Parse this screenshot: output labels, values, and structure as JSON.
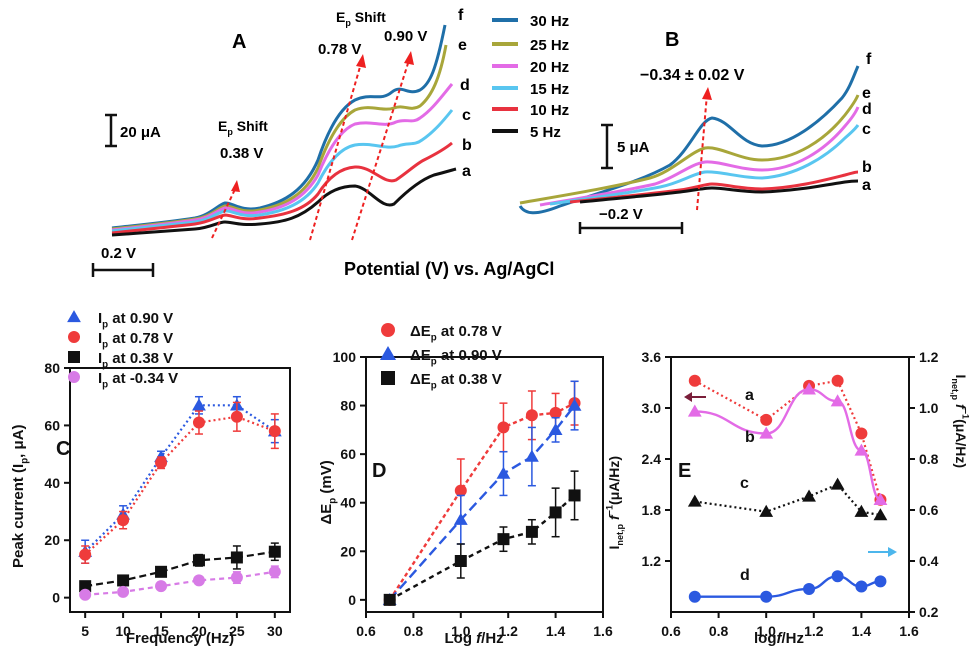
{
  "panels": {
    "A": {
      "label": "A",
      "scale_current": "20 μA",
      "scale_potential": "0.2 V",
      "shift_low": {
        "ep": "E",
        "sub": "p",
        "word": " Shift",
        "value": "0.38 V"
      },
      "shift_high": {
        "ep": "E",
        "sub": "p",
        "word": " Shift",
        "value_left": "0.78 V",
        "value_right": "0.90 V"
      },
      "curve_letters": [
        "f",
        "e",
        "d",
        "c",
        "b",
        "a"
      ]
    },
    "B": {
      "label": "B",
      "peak_label": "−0.34 ± 0.02 V",
      "scale_current": "5 μA",
      "scale_potential": "−0.2 V",
      "curve_letters": [
        "f",
        "e",
        "d",
        "c",
        "b",
        "a"
      ]
    },
    "legend_top": [
      {
        "label": "30 Hz",
        "color": "#1f6fa8"
      },
      {
        "label": "25 Hz",
        "color": "#a8a63a"
      },
      {
        "label": "20 Hz",
        "color": "#e36be6"
      },
      {
        "label": "15 Hz",
        "color": "#59c6f0"
      },
      {
        "label": "10 Hz",
        "color": "#e8323f"
      },
      {
        "label": "5 Hz",
        "color": "#111111"
      }
    ],
    "shared_xlabel": "Potential (V) vs. Ag/AgCl"
  },
  "chart_data": [
    {
      "panel": "C",
      "type": "line",
      "label": "C",
      "xlabel": "Frequency (Hz)",
      "ylabel_main": "Peak current (I",
      "ylabel_sub": "p",
      "ylabel_tail": ", μA)",
      "xlim": [
        3,
        32
      ],
      "ylim": [
        -5,
        80
      ],
      "xticks": [
        5,
        10,
        15,
        20,
        25,
        30
      ],
      "yticks": [
        0,
        20,
        40,
        60,
        80
      ],
      "x": [
        5,
        10,
        15,
        20,
        25,
        30
      ],
      "series": [
        {
          "name": "I",
          "sub": "p",
          "tail": " at 0.90 V",
          "color": "#2b59e0",
          "marker": "triangle",
          "values": [
            16,
            29,
            49,
            67,
            67,
            58
          ],
          "err": [
            4,
            3,
            2,
            3,
            3,
            4
          ]
        },
        {
          "name": "I",
          "sub": "p",
          "tail": " at 0.78 V",
          "color": "#ef3b3b",
          "marker": "circle",
          "values": [
            15,
            27,
            47,
            61,
            63,
            58
          ],
          "err": [
            3,
            3,
            2,
            4,
            5,
            6
          ]
        },
        {
          "name": "I",
          "sub": "p",
          "tail": " at 0.38 V",
          "color": "#111111",
          "marker": "square",
          "values": [
            4,
            6,
            9,
            13,
            14,
            16
          ],
          "err": [
            1,
            1,
            1,
            2,
            4,
            3
          ]
        },
        {
          "name": "I",
          "sub": "p",
          "tail": " at -0.34 V",
          "color": "#d77be6",
          "marker": "circle",
          "values": [
            1,
            2,
            4,
            6,
            7,
            9
          ],
          "err": [
            1,
            1,
            1,
            1,
            2,
            2
          ]
        }
      ]
    },
    {
      "panel": "D",
      "type": "line",
      "label": "D",
      "xlabel_pre": "Log ",
      "xlabel_f": "f",
      "xlabel_post": "/Hz",
      "ylabel_main": "ΔE",
      "ylabel_sub": "p",
      "ylabel_tail": " (mV)",
      "xlim": [
        0.6,
        1.6
      ],
      "ylim": [
        -5,
        100
      ],
      "xticks": [
        0.6,
        0.8,
        1.0,
        1.2,
        1.4,
        1.6
      ],
      "xtick_labels": [
        "0.6",
        "0.8",
        "1.0",
        "1.2",
        "1.4",
        "1.6"
      ],
      "yticks": [
        0,
        20,
        40,
        60,
        80,
        100
      ],
      "x": [
        0.7,
        1.0,
        1.18,
        1.3,
        1.4,
        1.48
      ],
      "series": [
        {
          "name": "ΔE",
          "sub": "p",
          "tail": " at 0.78 V",
          "color": "#ef3b3b",
          "marker": "circle",
          "values": [
            0,
            45,
            71,
            76,
            77,
            81
          ],
          "err": [
            0,
            13,
            10,
            10,
            8,
            9
          ]
        },
        {
          "name": "ΔE",
          "sub": "p",
          "tail": " at 0.90 V",
          "color": "#2b59e0",
          "marker": "triangle",
          "values": [
            0,
            33,
            52,
            59,
            70,
            80
          ],
          "err": [
            0,
            10,
            9,
            12,
            5,
            10
          ]
        },
        {
          "name": "ΔE",
          "sub": "p",
          "tail": " at 0.38 V",
          "color": "#111111",
          "marker": "square",
          "values": [
            0,
            16,
            25,
            28,
            36,
            43
          ],
          "err": [
            0,
            7,
            5,
            5,
            10,
            10
          ]
        }
      ]
    },
    {
      "panel": "E",
      "type": "line",
      "label": "E",
      "xlabel_pre": "log",
      "xlabel_f": "f",
      "xlabel_post": "/Hz",
      "ylabel_left": "I",
      "ylabel_left_sub": "net,p",
      "ylabel_left_tail": " f",
      "ylabel_left_sup": "−1",
      "ylabel_left_unit": "(μA/Hz)",
      "xlim": [
        0.6,
        1.6
      ],
      "ylim_left": [
        0.6,
        3.6
      ],
      "ylim_right": [
        0.2,
        1.2
      ],
      "xticks": [
        0.6,
        0.8,
        1.0,
        1.2,
        1.4,
        1.6
      ],
      "xtick_labels": [
        "0.6",
        "0.8",
        "1.0",
        "1.2",
        "1.4",
        "1.6"
      ],
      "yticks_left": [
        1.2,
        1.8,
        2.4,
        3.0,
        3.6
      ],
      "ytick_left_labels": [
        "1.2",
        "1.8",
        "2.4",
        "3.0",
        "3.6"
      ],
      "yticks_right": [
        0.2,
        0.4,
        0.6,
        0.8,
        1.0,
        1.2
      ],
      "ytick_right_labels": [
        "0.2",
        "0.4",
        "0.6",
        "0.8",
        "1.0",
        "1.2"
      ],
      "x": [
        0.7,
        1.0,
        1.18,
        1.3,
        1.4,
        1.48
      ],
      "series": [
        {
          "name": "a",
          "axis": "left",
          "color": "#ef3b3b",
          "marker": "circle",
          "style": "dotted",
          "values": [
            3.32,
            2.86,
            3.26,
            3.32,
            2.7,
            1.92
          ]
        },
        {
          "name": "b",
          "axis": "left",
          "color": "#e36be6",
          "marker": "triangle",
          "style": "solid",
          "values": [
            2.96,
            2.7,
            3.22,
            3.08,
            2.5,
            1.92
          ]
        },
        {
          "name": "c",
          "axis": "left",
          "color": "#111111",
          "marker": "triangle",
          "style": "dotted",
          "values": [
            1.9,
            1.78,
            1.96,
            2.1,
            1.78,
            1.74
          ]
        },
        {
          "name": "d",
          "axis": "right",
          "color": "#2b59e0",
          "marker": "circle",
          "style": "solid",
          "values": [
            0.26,
            0.26,
            0.29,
            0.34,
            0.3,
            0.32
          ]
        }
      ]
    }
  ],
  "panel_e_right_axis": {
    "ylabel": "I",
    "sub": "net,p",
    "tail": " f",
    "sup": "−1",
    "unit": "(μA/Hz)"
  },
  "colors": {
    "arrow_red": "#ee2020",
    "arrow_left": "#7a1f3a",
    "arrow_right": "#4cb6ec"
  }
}
